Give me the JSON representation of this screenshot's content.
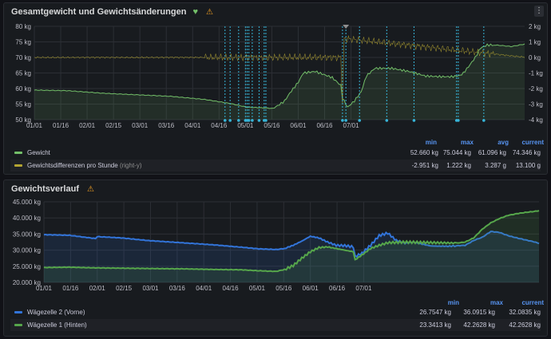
{
  "panels": {
    "top": {
      "title": "Gesamtgewicht und Gewichtsänderungen",
      "status_icon": "heart-icon",
      "warning_icon": "warning-icon",
      "menu_icon": "kebab-menu-icon",
      "legend_headers": {
        "min": "min",
        "max": "max",
        "avg": "avg",
        "current": "current"
      },
      "legend": [
        {
          "name": "Gewicht",
          "suffix": "",
          "color": "#73bf69",
          "min": "52.660 kg",
          "max": "75.044 kg",
          "avg": "61.096 kg",
          "current": "74.346 kg"
        },
        {
          "name": "Gewichtsdifferenzen pro Stunde",
          "suffix": "(right-y)",
          "color": "#b5a532",
          "min": "-2.951 kg",
          "max": "1.222 kg",
          "avg": "3.287 g",
          "current": "13.100 g"
        }
      ]
    },
    "bottom": {
      "title": "Gewichtsverlauf",
      "warning_icon": "warning-icon",
      "legend_headers": {
        "min": "min",
        "max": "max",
        "current": "current"
      },
      "legend": [
        {
          "name": "Wägezelle 2 (Vorne)",
          "color": "#3274d9",
          "min": "26.7547 kg",
          "max": "36.0915 kg",
          "current": "32.0835 kg"
        },
        {
          "name": "Wägezelle 1 (Hinten)",
          "color": "#56a64b",
          "min": "23.3413 kg",
          "max": "42.2628 kg",
          "current": "42.2628 kg"
        }
      ]
    }
  },
  "chart_data": [
    {
      "type": "line",
      "title": "Gesamtgewicht und Gewichtsänderungen",
      "x_ticks": [
        "01/01",
        "01/16",
        "02/01",
        "02/15",
        "03/01",
        "03/16",
        "04/01",
        "04/16",
        "05/01",
        "05/16",
        "06/01",
        "06/16",
        "07/01"
      ],
      "y_ticks": [
        "50 kg",
        "55 kg",
        "60 kg",
        "65 kg",
        "70 kg",
        "75 kg",
        "80 kg"
      ],
      "ylim": [
        50,
        80
      ],
      "y2_ticks": [
        "-4 kg",
        "-3 kg",
        "-2 kg",
        "-1 kg",
        "0 kg",
        "1 kg",
        "2 kg"
      ],
      "y2lim": [
        -4,
        2
      ],
      "grid": true,
      "legend_position": "bottom",
      "annotation_days": [
        112,
        115,
        120,
        124,
        125,
        126,
        128,
        132,
        135,
        136,
        181,
        183,
        191,
        207,
        223,
        248,
        249,
        264
      ],
      "series": [
        {
          "name": "Gewicht",
          "axis": "left",
          "color": "#73bf69",
          "x_days": [
            0,
            20,
            40,
            60,
            80,
            100,
            115,
            125,
            135,
            140,
            143,
            147,
            150,
            155,
            158,
            165,
            175,
            180,
            181,
            184,
            186,
            188,
            192,
            195,
            200,
            210,
            220,
            230,
            240,
            245,
            250,
            252,
            255,
            259,
            262,
            266,
            270,
            275,
            280,
            285,
            288
          ],
          "values": [
            59.5,
            59.3,
            58.5,
            58,
            57.5,
            56.5,
            55.2,
            54,
            53.8,
            53.6,
            54.5,
            56,
            58.5,
            62,
            65,
            65.5,
            63.5,
            61,
            57,
            54,
            55,
            56,
            59,
            64,
            66.5,
            66.5,
            65.5,
            64,
            63.8,
            63.8,
            64.2,
            65,
            67,
            70,
            73,
            74,
            74,
            73.8,
            73.5,
            74,
            74.3
          ]
        },
        {
          "name": "Gewichtsdifferenzen pro Stunde",
          "axis": "right",
          "color": "#b5a532",
          "x_days": [
            0,
            180,
            181,
            182,
            288
          ],
          "values": [
            0,
            0,
            -2.951,
            1.222,
            0.0131
          ]
        }
      ]
    },
    {
      "type": "area",
      "title": "Gewichtsverlauf",
      "x_ticks": [
        "01/01",
        "01/16",
        "02/01",
        "02/15",
        "03/01",
        "03/16",
        "04/01",
        "04/16",
        "05/01",
        "05/16",
        "06/01",
        "06/16",
        "07/01"
      ],
      "y_ticks": [
        "20.000 kg",
        "25.000 kg",
        "30.000 kg",
        "35.000 kg",
        "40.000 kg",
        "45.000 kg"
      ],
      "ylim": [
        20000,
        45000
      ],
      "grid": true,
      "legend_position": "bottom",
      "series": [
        {
          "name": "Wägezelle 2 (Vorne)",
          "color": "#3274d9",
          "x_days": [
            0,
            15,
            30,
            31,
            45,
            60,
            80,
            100,
            115,
            125,
            135,
            140,
            145,
            150,
            155,
            160,
            165,
            170,
            175,
            180,
            181,
            185,
            190,
            195,
            200,
            205,
            210,
            215,
            225,
            235,
            245,
            250,
            255,
            260,
            265,
            270,
            275,
            280,
            285,
            288
          ],
          "values": [
            34800,
            34600,
            33600,
            34200,
            33800,
            33000,
            32300,
            31600,
            30900,
            30400,
            30200,
            30500,
            31500,
            32800,
            34300,
            33800,
            32500,
            31500,
            31400,
            31000,
            28000,
            29000,
            31500,
            34500,
            35300,
            33000,
            32200,
            32500,
            31300,
            31200,
            31500,
            33000,
            34000,
            35800,
            35500,
            34500,
            33800,
            33200,
            32600,
            32100
          ]
        },
        {
          "name": "Wägezelle 1 (Hinten)",
          "color": "#56a64b",
          "x_days": [
            0,
            15,
            30,
            45,
            60,
            80,
            100,
            115,
            125,
            135,
            140,
            145,
            150,
            155,
            160,
            165,
            170,
            175,
            180,
            181,
            185,
            190,
            195,
            200,
            205,
            210,
            220,
            230,
            240,
            245,
            250,
            255,
            260,
            265,
            270,
            275,
            280,
            285,
            288
          ],
          "values": [
            24600,
            24700,
            24500,
            24400,
            24300,
            24200,
            24000,
            23900,
            23600,
            23400,
            24000,
            25200,
            27500,
            29500,
            30800,
            31000,
            30500,
            30000,
            29500,
            27000,
            28500,
            30500,
            31500,
            32300,
            32400,
            32500,
            32400,
            32300,
            32200,
            32500,
            33800,
            36500,
            38500,
            39800,
            40800,
            41300,
            41700,
            42000,
            42260
          ]
        }
      ]
    }
  ]
}
